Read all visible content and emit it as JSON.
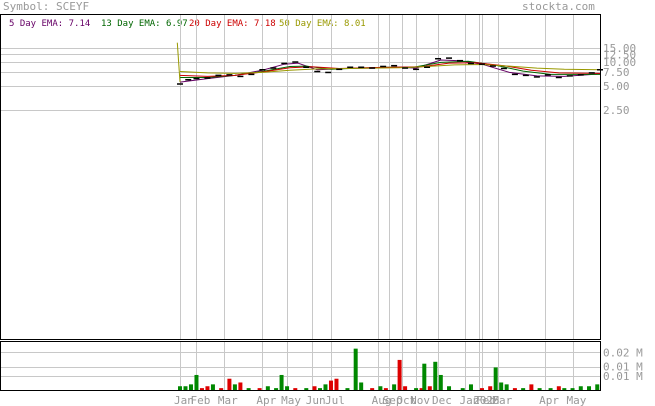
{
  "header": {
    "symbol_label": "Symbol: SCEYF",
    "site": "stockta.com"
  },
  "legend": [
    {
      "text": "5 Day EMA: 7.14",
      "color": "#660066"
    },
    {
      "text": "13 Day EMA: 6.97",
      "color": "#006600"
    },
    {
      "text": "20 Day EMA: 7.18",
      "color": "#cc0000"
    },
    {
      "text": "50 Day EMA: 8.01",
      "color": "#999900"
    }
  ],
  "chart_data": [
    {
      "type": "line",
      "title": "",
      "ylabel": "",
      "y_scale": "log",
      "ylim": [
        2.5,
        15
      ],
      "y_ticks": [
        "15.00",
        "12.50",
        "10.00",
        "7.50",
        "5.00",
        "2.50"
      ],
      "x_ticks": [
        "Jan",
        "Feb",
        "Mar",
        "Apr",
        "May",
        "Jun",
        "Jul",
        "Aug",
        "Sep",
        "Oct",
        "Nov",
        "Dec",
        "Jan",
        "2025",
        "Feb",
        "Mar",
        "Apr",
        "May"
      ],
      "x_months": [
        0,
        0.6,
        1.6,
        3,
        3.9,
        4.8,
        5.5,
        7.2,
        7.6,
        8.1,
        8.6,
        9.4,
        10.4,
        10.9,
        11.0,
        11.6,
        13.3,
        14.3
      ],
      "price": [
        [
          0.0,
          5.3
        ],
        [
          0.3,
          6.0
        ],
        [
          0.6,
          6.2
        ],
        [
          1.0,
          6.3
        ],
        [
          1.4,
          6.8
        ],
        [
          1.8,
          6.9
        ],
        [
          2.2,
          6.6
        ],
        [
          2.6,
          7.0
        ],
        [
          3.0,
          8.0
        ],
        [
          3.4,
          8.4
        ],
        [
          3.8,
          9.6
        ],
        [
          4.2,
          10.0
        ],
        [
          4.6,
          8.6
        ],
        [
          5.0,
          7.6
        ],
        [
          5.4,
          7.4
        ],
        [
          5.8,
          8.1
        ],
        [
          6.2,
          8.6
        ],
        [
          6.6,
          8.6
        ],
        [
          7.0,
          8.4
        ],
        [
          7.4,
          8.8
        ],
        [
          7.8,
          9.0
        ],
        [
          8.2,
          8.4
        ],
        [
          8.6,
          8.1
        ],
        [
          9.0,
          8.6
        ],
        [
          9.4,
          11.0
        ],
        [
          9.8,
          11.2
        ],
        [
          10.2,
          10.4
        ],
        [
          10.6,
          9.6
        ],
        [
          11.0,
          9.4
        ],
        [
          11.4,
          8.9
        ],
        [
          11.8,
          8.3
        ],
        [
          12.2,
          7.0
        ],
        [
          12.6,
          6.8
        ],
        [
          13.0,
          6.5
        ],
        [
          13.4,
          6.9
        ],
        [
          13.8,
          6.4
        ],
        [
          14.2,
          6.7
        ],
        [
          14.6,
          6.9
        ],
        [
          15.0,
          7.3
        ],
        [
          15.3,
          8.0
        ]
      ],
      "series": [
        {
          "name": "5 Day EMA",
          "values": [
            [
              0.0,
              5.6
            ],
            [
              1.0,
              6.2
            ],
            [
              2.0,
              6.8
            ],
            [
              3.0,
              7.9
            ],
            [
              3.8,
              9.4
            ],
            [
              4.3,
              9.7
            ],
            [
              5.0,
              8.0
            ],
            [
              6.0,
              8.3
            ],
            [
              7.0,
              8.4
            ],
            [
              8.0,
              8.6
            ],
            [
              8.6,
              8.4
            ],
            [
              9.5,
              10.6
            ],
            [
              10.2,
              10.4
            ],
            [
              11.0,
              9.4
            ],
            [
              12.0,
              7.4
            ],
            [
              13.0,
              6.7
            ],
            [
              14.0,
              6.6
            ],
            [
              15.3,
              7.1
            ]
          ]
        },
        {
          "name": "13 Day EMA",
          "values": [
            [
              0.0,
              6.4
            ],
            [
              1.0,
              6.4
            ],
            [
              2.0,
              6.8
            ],
            [
              3.0,
              7.6
            ],
            [
              4.0,
              8.8
            ],
            [
              4.6,
              8.9
            ],
            [
              5.5,
              8.1
            ],
            [
              6.5,
              8.4
            ],
            [
              7.5,
              8.6
            ],
            [
              8.5,
              8.6
            ],
            [
              9.5,
              9.9
            ],
            [
              10.5,
              10.2
            ],
            [
              11.5,
              9.1
            ],
            [
              12.5,
              7.7
            ],
            [
              13.5,
              7.0
            ],
            [
              15.3,
              7.0
            ]
          ]
        },
        {
          "name": "20 Day EMA",
          "values": [
            [
              0.0,
              6.8
            ],
            [
              1.0,
              6.6
            ],
            [
              2.0,
              6.8
            ],
            [
              3.0,
              7.5
            ],
            [
              4.0,
              8.5
            ],
            [
              4.8,
              8.7
            ],
            [
              5.8,
              8.3
            ],
            [
              6.8,
              8.5
            ],
            [
              7.8,
              8.6
            ],
            [
              8.8,
              8.7
            ],
            [
              9.8,
              9.7
            ],
            [
              10.8,
              9.8
            ],
            [
              11.8,
              9.0
            ],
            [
              12.8,
              7.9
            ],
            [
              13.8,
              7.3
            ],
            [
              15.3,
              7.2
            ]
          ]
        },
        {
          "name": "50 Day EMA",
          "values": [
            [
              0.0,
              7.6
            ],
            [
              1.0,
              7.3
            ],
            [
              2.0,
              7.2
            ],
            [
              3.0,
              7.4
            ],
            [
              4.0,
              7.9
            ],
            [
              5.0,
              8.2
            ],
            [
              6.0,
              8.3
            ],
            [
              7.0,
              8.4
            ],
            [
              8.0,
              8.5
            ],
            [
              9.0,
              8.8
            ],
            [
              10.0,
              9.2
            ],
            [
              11.0,
              9.3
            ],
            [
              12.0,
              8.9
            ],
            [
              13.0,
              8.4
            ],
            [
              14.0,
              8.1
            ],
            [
              15.3,
              8.0
            ]
          ]
        }
      ],
      "lead_in": [
        [
          -0.1,
          17.5
        ],
        [
          0.0,
          5.6
        ]
      ]
    },
    {
      "type": "bar",
      "title": "",
      "y_ticks": [
        "0.02 M",
        "0.01 M",
        "0.01 M"
      ],
      "y_tick_values": [
        0.02,
        0.0125,
        0.0075
      ],
      "ylim": [
        0,
        0.025
      ],
      "volume": [
        {
          "x": 0.0,
          "v": 0.002,
          "c": "g"
        },
        {
          "x": 0.2,
          "v": 0.002,
          "c": "g"
        },
        {
          "x": 0.4,
          "v": 0.003,
          "c": "g"
        },
        {
          "x": 0.6,
          "v": 0.008,
          "c": "g"
        },
        {
          "x": 0.8,
          "v": 0.001,
          "c": "r"
        },
        {
          "x": 1.0,
          "v": 0.002,
          "c": "r"
        },
        {
          "x": 1.2,
          "v": 0.003,
          "c": "g"
        },
        {
          "x": 1.5,
          "v": 0.001,
          "c": "r"
        },
        {
          "x": 1.8,
          "v": 0.006,
          "c": "r"
        },
        {
          "x": 2.0,
          "v": 0.003,
          "c": "g"
        },
        {
          "x": 2.2,
          "v": 0.004,
          "c": "r"
        },
        {
          "x": 2.5,
          "v": 0.001,
          "c": "g"
        },
        {
          "x": 2.9,
          "v": 0.001,
          "c": "r"
        },
        {
          "x": 3.2,
          "v": 0.002,
          "c": "g"
        },
        {
          "x": 3.5,
          "v": 0.001,
          "c": "g"
        },
        {
          "x": 3.7,
          "v": 0.008,
          "c": "g"
        },
        {
          "x": 3.9,
          "v": 0.002,
          "c": "g"
        },
        {
          "x": 4.2,
          "v": 0.001,
          "c": "r"
        },
        {
          "x": 4.6,
          "v": 0.001,
          "c": "g"
        },
        {
          "x": 4.9,
          "v": 0.002,
          "c": "r"
        },
        {
          "x": 5.1,
          "v": 0.001,
          "c": "g"
        },
        {
          "x": 5.3,
          "v": 0.003,
          "c": "g"
        },
        {
          "x": 5.5,
          "v": 0.005,
          "c": "r"
        },
        {
          "x": 5.7,
          "v": 0.006,
          "c": "r"
        },
        {
          "x": 6.1,
          "v": 0.001,
          "c": "g"
        },
        {
          "x": 6.4,
          "v": 0.022,
          "c": "g"
        },
        {
          "x": 6.6,
          "v": 0.004,
          "c": "g"
        },
        {
          "x": 7.0,
          "v": 0.001,
          "c": "r"
        },
        {
          "x": 7.3,
          "v": 0.002,
          "c": "g"
        },
        {
          "x": 7.5,
          "v": 0.001,
          "c": "r"
        },
        {
          "x": 7.8,
          "v": 0.003,
          "c": "g"
        },
        {
          "x": 8.0,
          "v": 0.016,
          "c": "r"
        },
        {
          "x": 8.2,
          "v": 0.002,
          "c": "r"
        },
        {
          "x": 8.6,
          "v": 0.001,
          "c": "g"
        },
        {
          "x": 8.8,
          "v": 0.001,
          "c": "r"
        },
        {
          "x": 8.9,
          "v": 0.014,
          "c": "g"
        },
        {
          "x": 9.1,
          "v": 0.002,
          "c": "r"
        },
        {
          "x": 9.3,
          "v": 0.015,
          "c": "g"
        },
        {
          "x": 9.5,
          "v": 0.008,
          "c": "g"
        },
        {
          "x": 9.8,
          "v": 0.002,
          "c": "g"
        },
        {
          "x": 10.3,
          "v": 0.001,
          "c": "g"
        },
        {
          "x": 10.6,
          "v": 0.003,
          "c": "g"
        },
        {
          "x": 11.0,
          "v": 0.001,
          "c": "r"
        },
        {
          "x": 11.3,
          "v": 0.002,
          "c": "r"
        },
        {
          "x": 11.5,
          "v": 0.012,
          "c": "g"
        },
        {
          "x": 11.7,
          "v": 0.004,
          "c": "g"
        },
        {
          "x": 11.9,
          "v": 0.003,
          "c": "g"
        },
        {
          "x": 12.2,
          "v": 0.001,
          "c": "r"
        },
        {
          "x": 12.5,
          "v": 0.001,
          "c": "g"
        },
        {
          "x": 12.8,
          "v": 0.003,
          "c": "r"
        },
        {
          "x": 13.1,
          "v": 0.001,
          "c": "g"
        },
        {
          "x": 13.5,
          "v": 0.001,
          "c": "g"
        },
        {
          "x": 13.8,
          "v": 0.002,
          "c": "r"
        },
        {
          "x": 14.0,
          "v": 0.001,
          "c": "g"
        },
        {
          "x": 14.3,
          "v": 0.001,
          "c": "g"
        },
        {
          "x": 14.6,
          "v": 0.002,
          "c": "g"
        },
        {
          "x": 14.9,
          "v": 0.002,
          "c": "g"
        },
        {
          "x": 15.2,
          "v": 0.003,
          "c": "g"
        }
      ]
    }
  ],
  "colors": {
    "grid": "#c8c8c8",
    "price": "#000000",
    "up_volume": "#008800",
    "down_volume": "#dd0000",
    "axis_text": "#999999",
    "border": "#000000",
    "lead_in": "#999900"
  }
}
